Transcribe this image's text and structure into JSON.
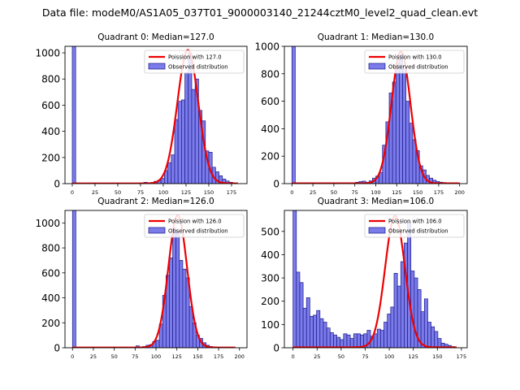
{
  "figure": {
    "suptitle": "Data file: modeM0/AS1A05_037T01_9000003140_21244cztM0_level2_quad_clean.evt"
  },
  "colors": {
    "bar_fill": "#7b7bea",
    "bar_edge": "#1a1a8a",
    "poisson_line": "#ee0000",
    "axis": "#000000"
  },
  "chart_data": [
    {
      "type": "bar",
      "title": "Quadrant 0: Median=127.0",
      "xlim": [
        -8,
        192
      ],
      "ylim": [
        0,
        1050
      ],
      "xticks": [
        0,
        25,
        50,
        75,
        100,
        125,
        150,
        175
      ],
      "yticks": [
        0,
        200,
        400,
        600,
        800,
        1000
      ],
      "bin_width": 3.75,
      "bins": [
        {
          "x": 0,
          "value": 1050
        },
        {
          "x": 78.75,
          "value": 10
        },
        {
          "x": 82.5,
          "value": 5
        },
        {
          "x": 86.25,
          "value": 8
        },
        {
          "x": 90,
          "value": 18
        },
        {
          "x": 93.75,
          "value": 25
        },
        {
          "x": 97.5,
          "value": 40
        },
        {
          "x": 101.25,
          "value": 100
        },
        {
          "x": 105,
          "value": 160
        },
        {
          "x": 108.75,
          "value": 220
        },
        {
          "x": 112.5,
          "value": 490
        },
        {
          "x": 116.25,
          "value": 630
        },
        {
          "x": 120,
          "value": 640
        },
        {
          "x": 123.75,
          "value": 850
        },
        {
          "x": 127.5,
          "value": 1000
        },
        {
          "x": 131.25,
          "value": 720
        },
        {
          "x": 135,
          "value": 800
        },
        {
          "x": 138.75,
          "value": 560
        },
        {
          "x": 142.5,
          "value": 480
        },
        {
          "x": 146.25,
          "value": 250
        },
        {
          "x": 150,
          "value": 240
        },
        {
          "x": 153.75,
          "value": 125
        },
        {
          "x": 157.5,
          "value": 90
        },
        {
          "x": 161.25,
          "value": 60
        },
        {
          "x": 165,
          "value": 35
        },
        {
          "x": 168.75,
          "value": 20
        },
        {
          "x": 172.5,
          "value": 10
        },
        {
          "x": 176.25,
          "value": 5
        }
      ],
      "poisson": {
        "mean": 127.0,
        "peak": 1020,
        "sigma": 11.5,
        "x_range": [
          0,
          182
        ]
      },
      "legend": {
        "line": "Poission with 127.0",
        "bars": "Observed distribution",
        "position": "top-right"
      }
    },
    {
      "type": "bar",
      "title": "Quadrant 1: Median=130.0",
      "xlim": [
        -9,
        209
      ],
      "ylim": [
        0,
        1000
      ],
      "xticks": [
        0,
        25,
        50,
        75,
        100,
        125,
        150,
        175,
        200
      ],
      "yticks": [
        0,
        200,
        400,
        600,
        800,
        1000
      ],
      "bin_width": 4,
      "bins": [
        {
          "x": 0,
          "value": 1000
        },
        {
          "x": 76,
          "value": 10
        },
        {
          "x": 80,
          "value": 15
        },
        {
          "x": 84,
          "value": 18
        },
        {
          "x": 88,
          "value": 10
        },
        {
          "x": 92,
          "value": 20
        },
        {
          "x": 96,
          "value": 40
        },
        {
          "x": 100,
          "value": 55
        },
        {
          "x": 104,
          "value": 80
        },
        {
          "x": 108,
          "value": 280
        },
        {
          "x": 112,
          "value": 450
        },
        {
          "x": 116,
          "value": 660
        },
        {
          "x": 120,
          "value": 740
        },
        {
          "x": 124,
          "value": 880
        },
        {
          "x": 128,
          "value": 940
        },
        {
          "x": 132,
          "value": 830
        },
        {
          "x": 136,
          "value": 600
        },
        {
          "x": 140,
          "value": 440
        },
        {
          "x": 144,
          "value": 320
        },
        {
          "x": 148,
          "value": 240
        },
        {
          "x": 152,
          "value": 130
        },
        {
          "x": 156,
          "value": 100
        },
        {
          "x": 160,
          "value": 60
        },
        {
          "x": 164,
          "value": 40
        },
        {
          "x": 168,
          "value": 25
        },
        {
          "x": 172,
          "value": 15
        },
        {
          "x": 176,
          "value": 10
        },
        {
          "x": 180,
          "value": 8
        }
      ],
      "poisson": {
        "mean": 130.0,
        "peak": 960,
        "sigma": 11.4,
        "x_range": [
          0,
          200
        ]
      },
      "legend": {
        "line": "Poission with 130.0",
        "bars": "Observed distribution",
        "position": "top-right"
      }
    },
    {
      "type": "bar",
      "title": "Quadrant 2: Median=126.0",
      "xlim": [
        -9,
        209
      ],
      "ylim": [
        0,
        1100
      ],
      "xticks": [
        0,
        25,
        50,
        75,
        100,
        125,
        150,
        175,
        200
      ],
      "yticks": [
        0,
        200,
        400,
        600,
        800,
        1000
      ],
      "bin_width": 4,
      "bins": [
        {
          "x": 0,
          "value": 1100
        },
        {
          "x": 76,
          "value": 15
        },
        {
          "x": 80,
          "value": 5
        },
        {
          "x": 84,
          "value": 10
        },
        {
          "x": 88,
          "value": 20
        },
        {
          "x": 92,
          "value": 25
        },
        {
          "x": 96,
          "value": 50
        },
        {
          "x": 100,
          "value": 60
        },
        {
          "x": 104,
          "value": 190
        },
        {
          "x": 108,
          "value": 420
        },
        {
          "x": 112,
          "value": 580
        },
        {
          "x": 116,
          "value": 720
        },
        {
          "x": 120,
          "value": 960
        },
        {
          "x": 124,
          "value": 930
        },
        {
          "x": 128,
          "value": 700
        },
        {
          "x": 132,
          "value": 630
        },
        {
          "x": 136,
          "value": 560
        },
        {
          "x": 140,
          "value": 330
        },
        {
          "x": 144,
          "value": 200
        },
        {
          "x": 148,
          "value": 100
        },
        {
          "x": 152,
          "value": 75
        },
        {
          "x": 156,
          "value": 40
        },
        {
          "x": 160,
          "value": 20
        },
        {
          "x": 164,
          "value": 10
        }
      ],
      "poisson": {
        "mean": 126.0,
        "peak": 1060,
        "sigma": 11.2,
        "x_range": [
          0,
          195
        ]
      },
      "legend": {
        "line": "Poission with 126.0",
        "bars": "Observed distribution",
        "position": "top-right"
      }
    },
    {
      "type": "bar",
      "title": "Quadrant 3: Median=106.0",
      "xlim": [
        -9,
        181
      ],
      "ylim": [
        0,
        590
      ],
      "xticks": [
        0,
        25,
        50,
        75,
        100,
        125,
        150,
        175
      ],
      "yticks": [
        0,
        100,
        200,
        300,
        400,
        500
      ],
      "bin_width": 3.5,
      "bins": [
        {
          "x": 0,
          "value": 590
        },
        {
          "x": 3.5,
          "value": 325
        },
        {
          "x": 7,
          "value": 280
        },
        {
          "x": 10.5,
          "value": 170
        },
        {
          "x": 14,
          "value": 215
        },
        {
          "x": 17.5,
          "value": 135
        },
        {
          "x": 21,
          "value": 140
        },
        {
          "x": 24.5,
          "value": 160
        },
        {
          "x": 28,
          "value": 125
        },
        {
          "x": 31.5,
          "value": 110
        },
        {
          "x": 35,
          "value": 85
        },
        {
          "x": 38.5,
          "value": 65
        },
        {
          "x": 42,
          "value": 55
        },
        {
          "x": 45.5,
          "value": 45
        },
        {
          "x": 49,
          "value": 35
        },
        {
          "x": 52.5,
          "value": 60
        },
        {
          "x": 56,
          "value": 55
        },
        {
          "x": 59.5,
          "value": 40
        },
        {
          "x": 63,
          "value": 60
        },
        {
          "x": 66.5,
          "value": 60
        },
        {
          "x": 70,
          "value": 55
        },
        {
          "x": 73.5,
          "value": 60
        },
        {
          "x": 77,
          "value": 75
        },
        {
          "x": 80.5,
          "value": 50
        },
        {
          "x": 84,
          "value": 60
        },
        {
          "x": 87.5,
          "value": 80
        },
        {
          "x": 91,
          "value": 75
        },
        {
          "x": 94.5,
          "value": 110
        },
        {
          "x": 98,
          "value": 145
        },
        {
          "x": 101.5,
          "value": 175
        },
        {
          "x": 105,
          "value": 320
        },
        {
          "x": 108.5,
          "value": 265
        },
        {
          "x": 112,
          "value": 370
        },
        {
          "x": 115.5,
          "value": 450
        },
        {
          "x": 119,
          "value": 540
        },
        {
          "x": 122.5,
          "value": 330
        },
        {
          "x": 126,
          "value": 300
        },
        {
          "x": 129.5,
          "value": 250
        },
        {
          "x": 133,
          "value": 155
        },
        {
          "x": 136.5,
          "value": 210
        },
        {
          "x": 140,
          "value": 110
        },
        {
          "x": 143.5,
          "value": 90
        },
        {
          "x": 147,
          "value": 70
        },
        {
          "x": 150.5,
          "value": 40
        },
        {
          "x": 154,
          "value": 20
        },
        {
          "x": 157.5,
          "value": 15
        },
        {
          "x": 161,
          "value": 10
        },
        {
          "x": 164.5,
          "value": 5
        }
      ],
      "poisson": {
        "mean": 106.0,
        "peak": 565,
        "sigma": 10.3,
        "x_range": [
          0,
          170
        ]
      },
      "legend": {
        "line": "Poission with 106.0",
        "bars": "Observed distribution",
        "position": "top-right"
      }
    }
  ]
}
